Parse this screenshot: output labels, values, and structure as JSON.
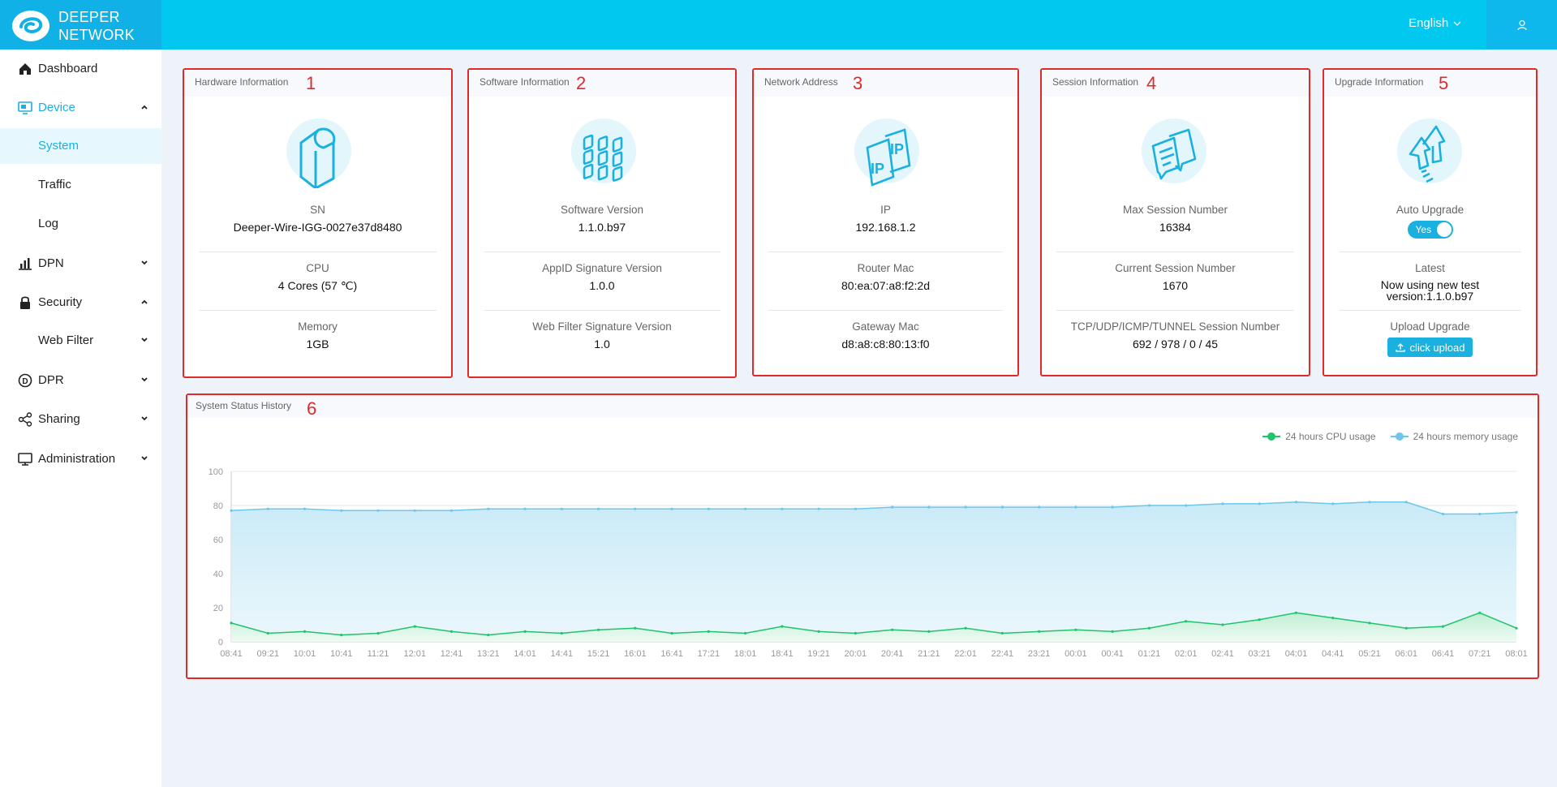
{
  "header": {
    "brand_line1": "DEEPER",
    "brand_line2": "NETWORK",
    "language": "English"
  },
  "sidebar": {
    "items": [
      {
        "label": "Dashboard",
        "icon": "home-icon"
      },
      {
        "label": "Device",
        "icon": "monitor-icon",
        "expanded": true
      },
      {
        "label": "System",
        "selected": true
      },
      {
        "label": "Traffic"
      },
      {
        "label": "Log"
      },
      {
        "label": "DPN",
        "icon": "bar-chart-icon"
      },
      {
        "label": "Security",
        "icon": "lock-icon",
        "expanded": true
      },
      {
        "label": "Web Filter"
      },
      {
        "label": "DPR",
        "icon": "coin-icon"
      },
      {
        "label": "Sharing",
        "icon": "share-icon"
      },
      {
        "label": "Administration",
        "icon": "desktop-icon"
      }
    ]
  },
  "cards": {
    "hardware": {
      "title": "Hardware Information",
      "num": "1",
      "sn_label": "SN",
      "sn": "Deeper-Wire-IGG-0027e37d8480",
      "cpu_label": "CPU",
      "cpu": "4 Cores (57 ℃)",
      "memory_label": "Memory",
      "memory": "1GB"
    },
    "software": {
      "title": "Software Information",
      "num": "2",
      "version_label": "Software Version",
      "version": "1.1.0.b97",
      "appid_label": "AppID Signature Version",
      "appid": "1.0.0",
      "webfilter_label": "Web Filter Signature Version",
      "webfilter": "1.0"
    },
    "network": {
      "title": "Network Address",
      "num": "3",
      "ip_label": "IP",
      "ip": "192.168.1.2",
      "router_label": "Router Mac",
      "router": "80:ea:07:a8:f2:2d",
      "gateway_label": "Gateway Mac",
      "gateway": "d8:a8:c8:80:13:f0"
    },
    "session": {
      "title": "Session Information",
      "num": "4",
      "max_label": "Max Session Number",
      "max": "16384",
      "current_label": "Current Session Number",
      "current": "1670",
      "proto_label": "TCP/UDP/ICMP/TUNNEL Session Number",
      "proto": "692 / 978 / 0 / 45"
    },
    "upgrade": {
      "title": "Upgrade Information",
      "num": "5",
      "auto_label": "Auto Upgrade",
      "auto_value": "Yes",
      "latest_label": "Latest",
      "latest_line1": "Now using new test",
      "latest_line2": "version:1.1.0.b97",
      "upload_label": "Upload Upgrade",
      "upload_button": "click upload"
    }
  },
  "history": {
    "title": "System Status History",
    "num": "6"
  },
  "chart_data": {
    "type": "area",
    "ylim": [
      0,
      100
    ],
    "yticks": [
      0,
      20,
      40,
      60,
      80,
      100
    ],
    "grid": true,
    "legend_position": "top-right",
    "x": [
      "08:41",
      "09:21",
      "10:01",
      "10:41",
      "11:21",
      "12:01",
      "12:41",
      "13:21",
      "14:01",
      "14:41",
      "15:21",
      "16:01",
      "16:41",
      "17:21",
      "18:01",
      "18:41",
      "19:21",
      "20:01",
      "20:41",
      "21:21",
      "22:01",
      "22:41",
      "23:21",
      "00:01",
      "00:41",
      "01:21",
      "02:01",
      "02:41",
      "03:21",
      "04:01",
      "04:41",
      "05:21",
      "06:01",
      "06:41",
      "07:21",
      "08:01"
    ],
    "series": [
      {
        "name": "24 hours CPU usage",
        "color": "#1fc46b",
        "values": [
          11,
          5,
          6,
          4,
          5,
          9,
          6,
          4,
          6,
          5,
          7,
          8,
          5,
          6,
          5,
          9,
          6,
          5,
          7,
          6,
          8,
          5,
          6,
          7,
          6,
          8,
          12,
          10,
          13,
          17,
          14,
          11,
          8,
          9,
          17,
          8
        ]
      },
      {
        "name": "24 hours memory usage",
        "color": "#6cc7ea",
        "values": [
          77,
          78,
          78,
          77,
          77,
          77,
          77,
          78,
          78,
          78,
          78,
          78,
          78,
          78,
          78,
          78,
          78,
          78,
          79,
          79,
          79,
          79,
          79,
          79,
          79,
          80,
          80,
          81,
          81,
          82,
          81,
          82,
          82,
          75,
          75,
          76
        ]
      }
    ]
  }
}
